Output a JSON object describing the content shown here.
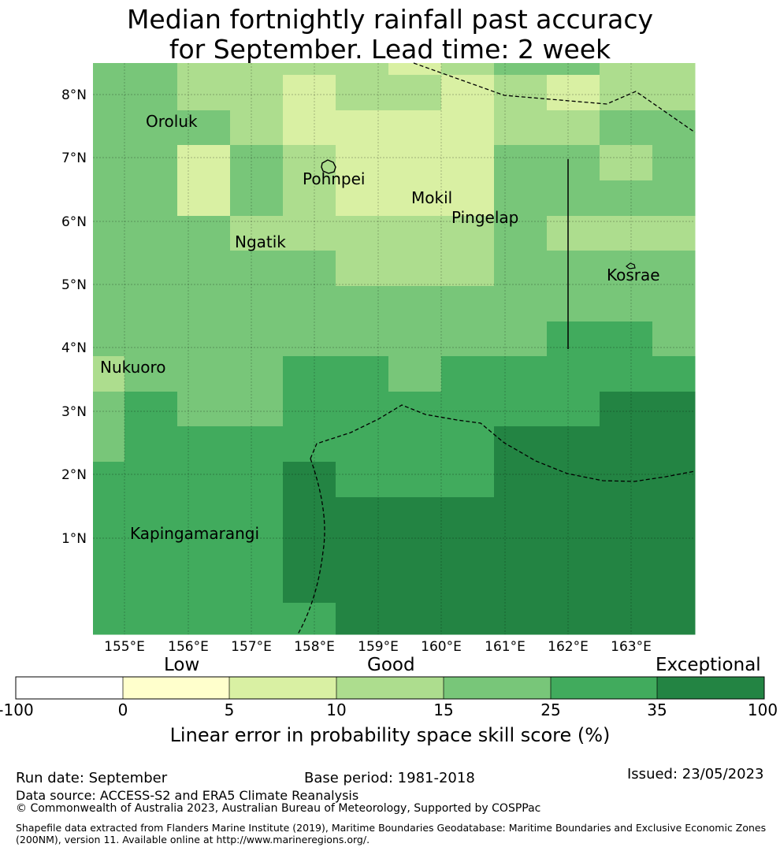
{
  "title_line1": "Median fortnightly rainfall past accuracy",
  "title_line2": "for September. Lead time: 2 week",
  "map": {
    "lat_labels": [
      "8°N",
      "7°N",
      "6°N",
      "5°N",
      "4°N",
      "3°N",
      "2°N",
      "1°N"
    ],
    "lon_labels": [
      "155°E",
      "156°E",
      "157°E",
      "158°E",
      "159°E",
      "160°E",
      "161°E",
      "162°E",
      "163°E"
    ],
    "places": [
      "Oroluk",
      "Pohnpei",
      "Mokil",
      "Pingelap",
      "Ngatik",
      "Kosrae",
      "Nukuoro",
      "Kapingamarangi"
    ]
  },
  "colorbar": {
    "categories": [
      "Low",
      "Good",
      "Exceptional"
    ],
    "ticks": [
      "-100",
      "0",
      "5",
      "10",
      "15",
      "25",
      "35",
      "100"
    ],
    "colors": [
      "#ffffff",
      "#ffffcc",
      "#d9f0a3",
      "#addd8e",
      "#78c679",
      "#41ab5d",
      "#238443"
    ],
    "label": "Linear error in probability space skill score (%)"
  },
  "footer": {
    "run_date": "Run date: September",
    "base_period": "Base period: 1981-2018",
    "issued": "Issued: 23/05/2023",
    "data_source": "Data source: ACCESS-S2 and ERA5 Climate Reanalysis",
    "copyright": "© Commonwealth of Australia 2023, Australian Bureau of Meteorology, Supported by COSPPac",
    "shapefile_1": "Shapefile data extracted from Flanders Marine Institute (2019), Maritime Boundaries Geodatabase: Maritime Boundaries and Exclusive Economic Zones",
    "shapefile_2": "(200NM), version 11. Available online at http://www.marineregions.org/."
  }
}
